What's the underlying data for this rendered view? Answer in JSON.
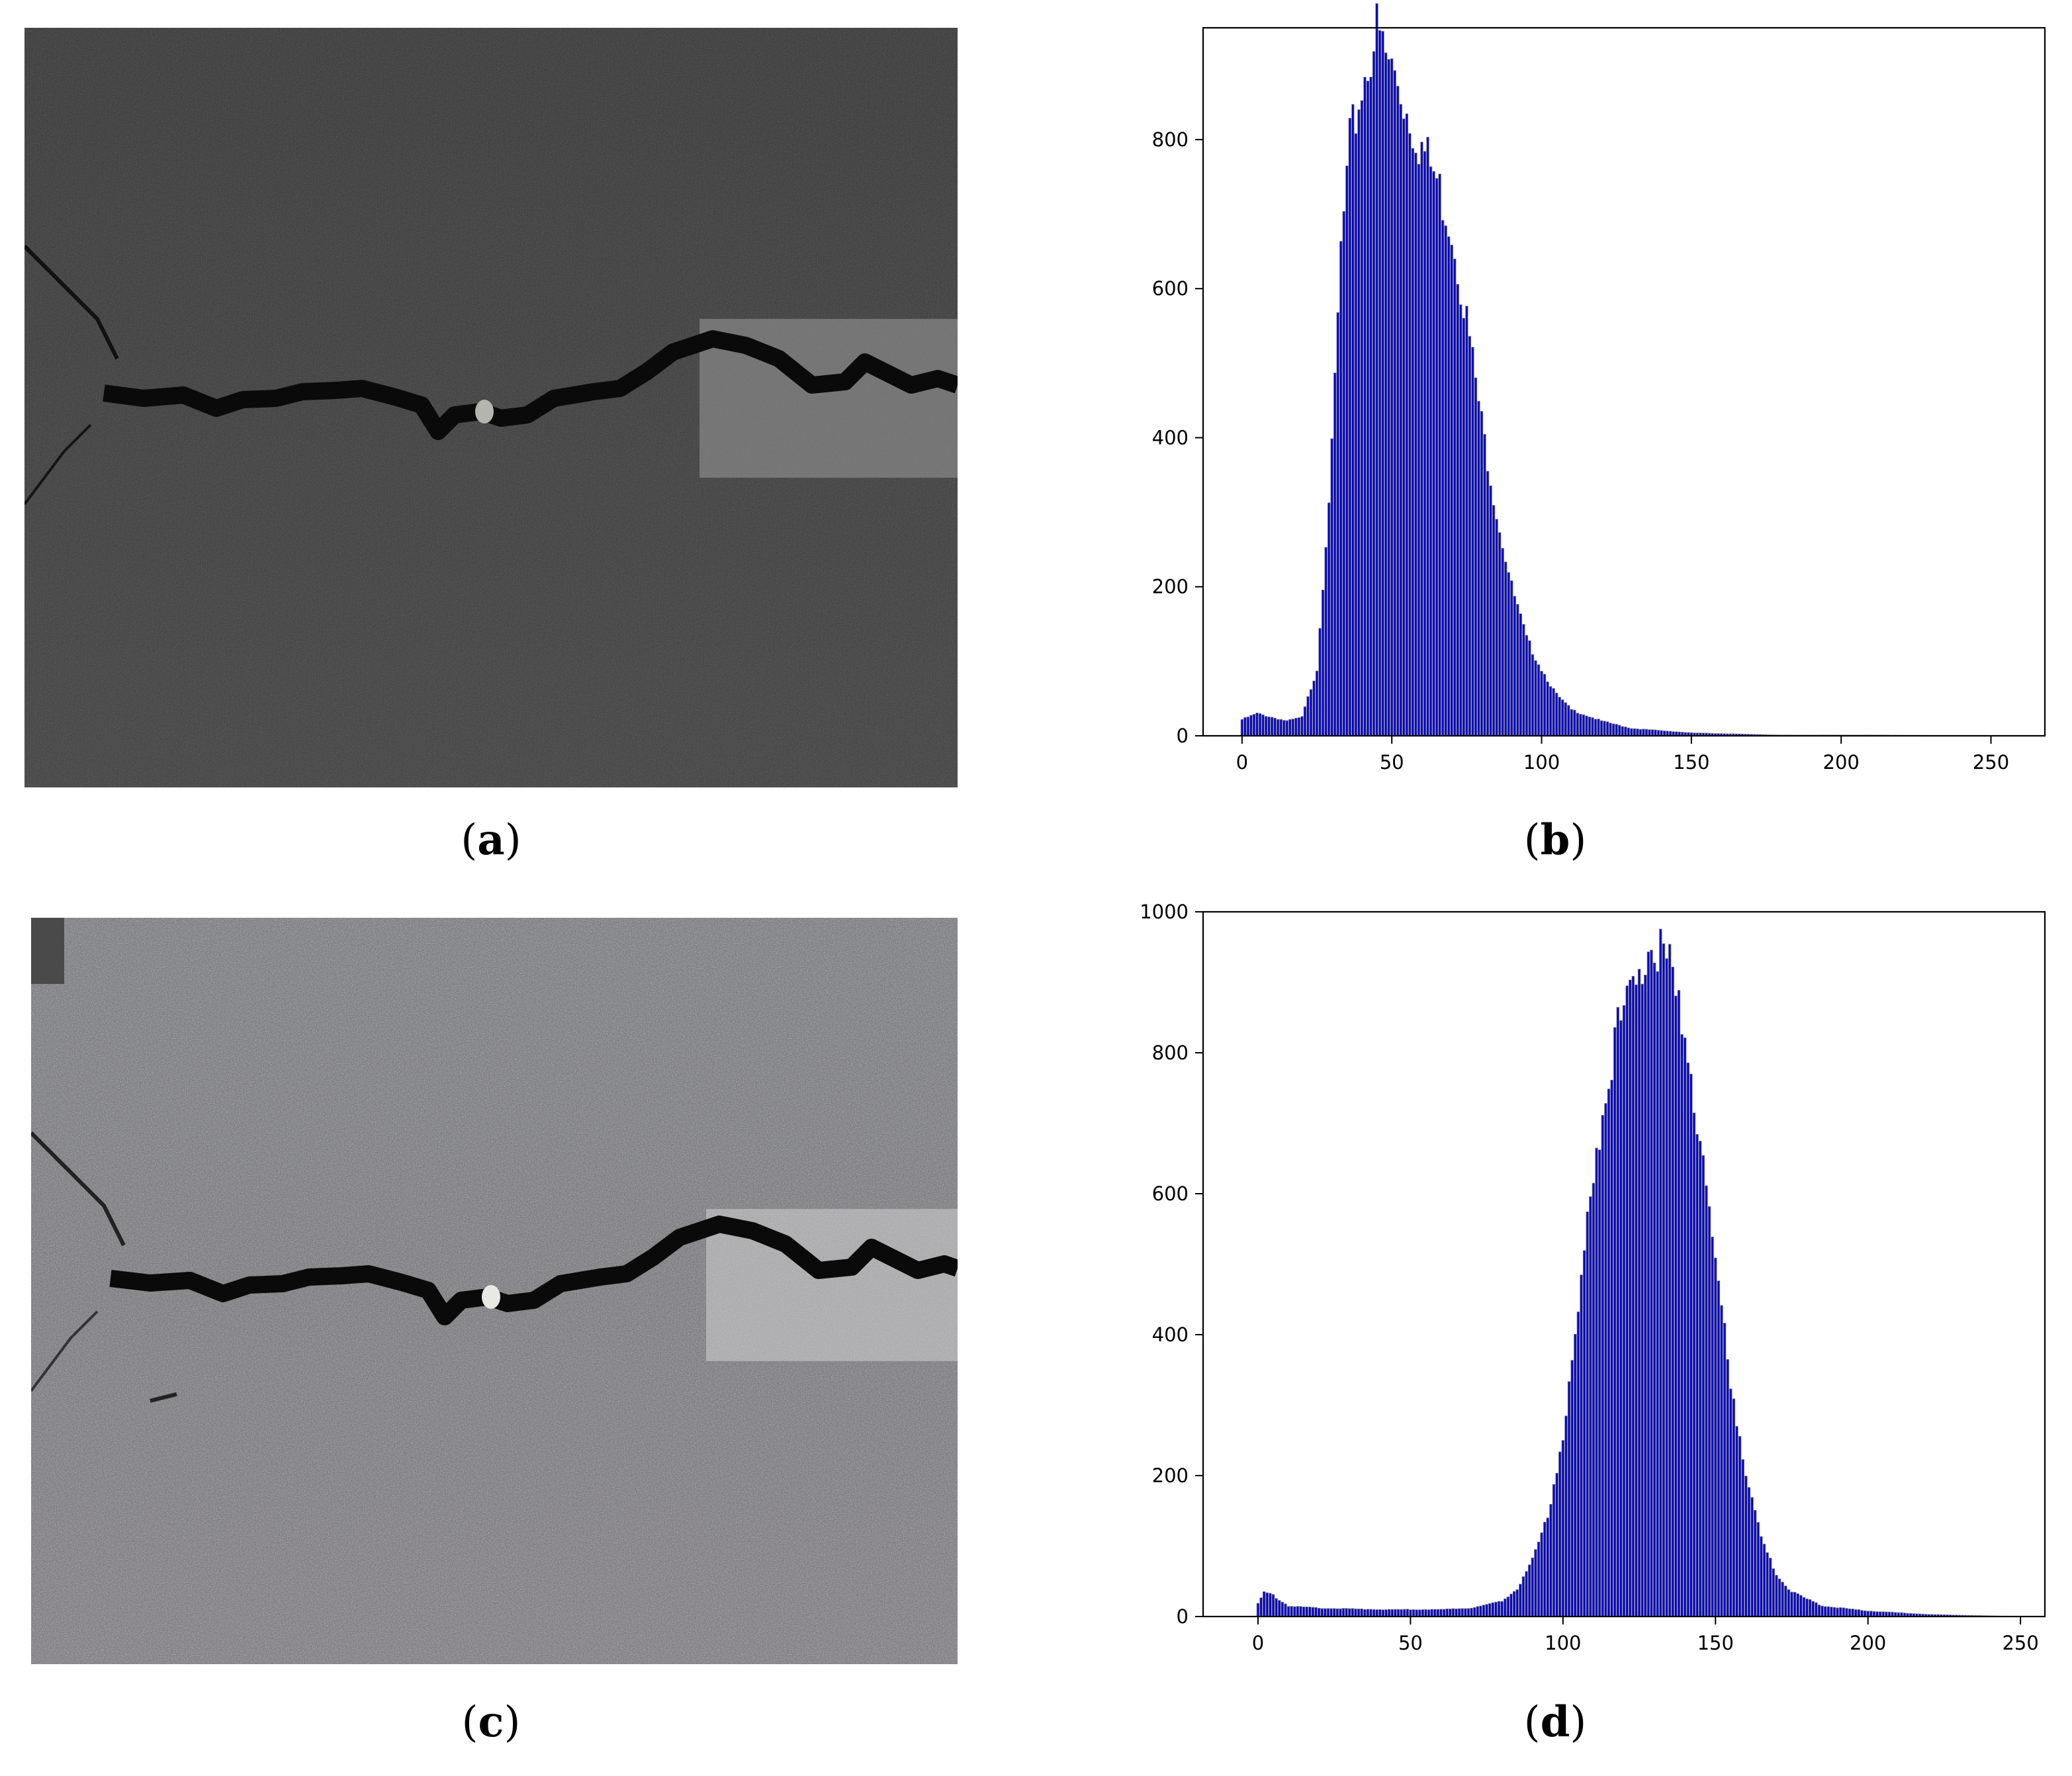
{
  "panels": [
    {
      "id": "a",
      "kind": "photo",
      "caption_open": "(",
      "caption_letter": "a",
      "caption_close": ")",
      "description_semantic": "dark pavement photo with crack"
    },
    {
      "id": "b",
      "kind": "histogram",
      "caption_open": "(",
      "caption_letter": "b",
      "caption_close": ")"
    },
    {
      "id": "c",
      "kind": "photo",
      "caption_open": "(",
      "caption_letter": "c",
      "caption_close": ")",
      "description_semantic": "brightened pavement photo with crack"
    },
    {
      "id": "d",
      "kind": "histogram",
      "caption_open": "(",
      "caption_letter": "d",
      "caption_close": ")"
    }
  ],
  "colors": {
    "bar": "#0000cc",
    "bar_edge": "#7f7f7f",
    "photo_dark": "#2b2b2b",
    "photo_light": "#8f9096",
    "crack": "#0a0a0a"
  },
  "chart_data": [
    {
      "type": "bar",
      "title": "",
      "xlabel": "",
      "ylabel": "",
      "xlim": [
        -13,
        268
      ],
      "ylim": [
        0,
        950
      ],
      "xticks": [
        0,
        50,
        100,
        150,
        200,
        250
      ],
      "yticks": [
        0,
        200,
        400,
        600,
        800
      ],
      "grid": false,
      "legend": "none",
      "profile": [
        [
          0,
          22
        ],
        [
          5,
          30
        ],
        [
          10,
          25
        ],
        [
          15,
          20
        ],
        [
          20,
          25
        ],
        [
          25,
          90
        ],
        [
          30,
          380
        ],
        [
          33,
          650
        ],
        [
          36,
          790
        ],
        [
          40,
          870
        ],
        [
          43,
          920
        ],
        [
          45,
          945
        ],
        [
          48,
          910
        ],
        [
          52,
          880
        ],
        [
          55,
          840
        ],
        [
          60,
          790
        ],
        [
          65,
          745
        ],
        [
          70,
          680
        ],
        [
          75,
          560
        ],
        [
          80,
          420
        ],
        [
          85,
          300
        ],
        [
          90,
          200
        ],
        [
          95,
          130
        ],
        [
          100,
          90
        ],
        [
          105,
          55
        ],
        [
          110,
          35
        ],
        [
          120,
          20
        ],
        [
          130,
          10
        ],
        [
          150,
          4
        ],
        [
          180,
          1
        ],
        [
          210,
          1
        ],
        [
          255,
          0
        ]
      ]
    },
    {
      "type": "bar",
      "title": "",
      "xlabel": "",
      "ylabel": "",
      "xlim": [
        -18,
        258
      ],
      "ylim": [
        0,
        1000
      ],
      "xticks": [
        0,
        50,
        100,
        150,
        200,
        250
      ],
      "yticks": [
        0,
        200,
        400,
        600,
        800,
        1000
      ],
      "grid": false,
      "legend": "none",
      "profile": [
        [
          0,
          18
        ],
        [
          2,
          35
        ],
        [
          5,
          30
        ],
        [
          10,
          15
        ],
        [
          20,
          12
        ],
        [
          40,
          10
        ],
        [
          60,
          10
        ],
        [
          70,
          12
        ],
        [
          80,
          22
        ],
        [
          85,
          40
        ],
        [
          90,
          80
        ],
        [
          95,
          140
        ],
        [
          100,
          260
        ],
        [
          105,
          420
        ],
        [
          110,
          640
        ],
        [
          115,
          780
        ],
        [
          120,
          860
        ],
        [
          125,
          930
        ],
        [
          130,
          955
        ],
        [
          135,
          910
        ],
        [
          140,
          830
        ],
        [
          145,
          680
        ],
        [
          150,
          500
        ],
        [
          155,
          340
        ],
        [
          160,
          200
        ],
        [
          165,
          110
        ],
        [
          170,
          60
        ],
        [
          175,
          35
        ],
        [
          185,
          15
        ],
        [
          200,
          8
        ],
        [
          220,
          3
        ],
        [
          250,
          0
        ]
      ]
    }
  ]
}
